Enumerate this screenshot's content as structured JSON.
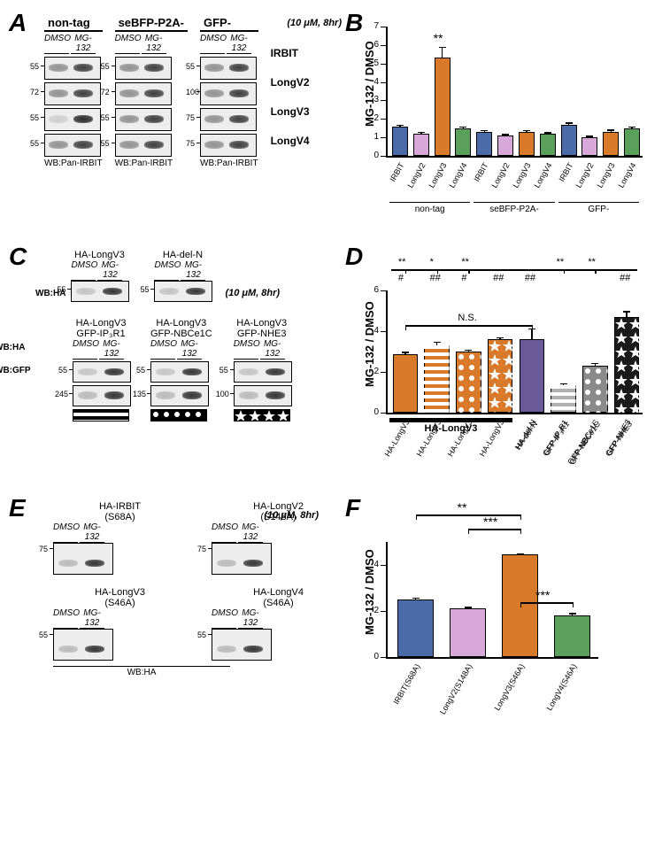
{
  "colors": {
    "irbit": "#4a6aa8",
    "longv2": "#d8a8d8",
    "longv3": "#d97a2a",
    "longv4": "#5aa05a",
    "deln": "#6a5a9a",
    "ip3r1": "#b0b0b0",
    "nbce1c": "#8a8a8a",
    "nhe3": "#1a1a1a",
    "axis": "#000000",
    "background": "#ffffff"
  },
  "typography": {
    "panel_label_pt": 28,
    "axis_label_pt": 13,
    "tick_label_pt": 10,
    "category_pt": 9,
    "group_title_pt": 13
  },
  "panelA": {
    "condition_note": "(10 μM, 8hr)",
    "wb_label": "WB:Pan-IRBIT",
    "groups": [
      {
        "title": "non-tag",
        "lanes": [
          "DMSO",
          "MG-132"
        ],
        "mw": [
          55,
          72,
          55,
          55
        ]
      },
      {
        "title": "seBFP-P2A-",
        "lanes": [
          "DMSO",
          "MG-132"
        ],
        "mw": [
          55,
          72,
          55,
          55
        ]
      },
      {
        "title": "GFP-",
        "lanes": [
          "DMSO",
          "MG-132"
        ],
        "mw": [
          55,
          100,
          75,
          75
        ]
      }
    ],
    "row_labels": [
      "IRBIT",
      "LongV2",
      "LongV3",
      "LongV4"
    ]
  },
  "panelB": {
    "ylabel": "MG-132 / DMSO",
    "ytick_step": 1,
    "ylim": [
      0,
      7
    ],
    "groups": [
      "non-tag",
      "seBFP-P2A-",
      "GFP-"
    ],
    "categories": [
      "IRBIT",
      "LongV2",
      "LongV3",
      "LongV4"
    ],
    "values": {
      "non-tag": [
        1.6,
        1.2,
        5.3,
        1.5
      ],
      "seBFP-P2A-": [
        1.3,
        1.1,
        1.3,
        1.2
      ],
      "GFP-": [
        1.7,
        1.0,
        1.3,
        1.5
      ]
    },
    "errors": {
      "non-tag": [
        0.1,
        0.1,
        0.6,
        0.1
      ],
      "seBFP-P2A-": [
        0.1,
        0.08,
        0.1,
        0.08
      ],
      "GFP-": [
        0.12,
        0.1,
        0.12,
        0.1
      ]
    },
    "colors_by_cat": [
      "irbit",
      "longv2",
      "longv3",
      "longv4"
    ],
    "sig": {
      "label": "**",
      "target": "non-tag.LongV3"
    }
  },
  "panelC": {
    "condition_note": "(10 μM, 8hr)",
    "top": [
      {
        "title": "HA-LongV3",
        "lanes": [
          "DMSO",
          "MG-132"
        ],
        "mw": 55,
        "wb": "WB:HA"
      },
      {
        "title": "HA-del-N",
        "lanes": [
          "DMSO",
          "MG-132"
        ],
        "mw": 55
      }
    ],
    "bottom": [
      {
        "title_top": "HA-LongV3",
        "title_bot": "GFP-IP₃R1",
        "lanes": [
          "DMSO",
          "MG-132"
        ],
        "mw_ha": 55,
        "mw_gfp": 245,
        "pattern": "stripes"
      },
      {
        "title_top": "HA-LongV3",
        "title_bot": "GFP-NBCe1C",
        "lanes": [
          "DMSO",
          "MG-132"
        ],
        "mw_ha": 55,
        "mw_gfp": 135,
        "pattern": "dots"
      },
      {
        "title_top": "HA-LongV3",
        "title_bot": "GFP-NHE3",
        "lanes": [
          "DMSO",
          "MG-132"
        ],
        "mw_ha": 55,
        "mw_gfp": 100,
        "pattern": "stars"
      }
    ],
    "wb_rows": [
      "WB:HA",
      "WB:GFP"
    ]
  },
  "panelD": {
    "ylabel": "MG-132 / DMSO",
    "ylim": [
      0,
      6
    ],
    "ytick_step": 2,
    "bars": [
      {
        "label": "HA-LongV3",
        "pattern": "solid",
        "color": "longv3",
        "value": 2.85,
        "err": 0.15
      },
      {
        "label": "HA-LongV3",
        "pattern": "hstripes",
        "color": "longv3",
        "value": 3.3,
        "err": 0.2
      },
      {
        "label": "HA-LongV3",
        "pattern": "dots",
        "color": "longv3",
        "value": 3.0,
        "err": 0.1
      },
      {
        "label": "HA-LongV3",
        "pattern": "stars",
        "color": "longv3",
        "value": 3.6,
        "err": 0.1
      },
      {
        "label": "HA-del-N",
        "pattern": "solid",
        "color": "deln",
        "value": 3.6,
        "err": 0.55
      },
      {
        "label": "GFP-IP₃R1",
        "pattern": "hstripes",
        "color": "ip3r1",
        "value": 1.35,
        "err": 0.1
      },
      {
        "label": "GFP-NBCe1C",
        "pattern": "dots",
        "color": "nbce1c",
        "value": 2.3,
        "err": 0.15
      },
      {
        "label": "GFP-NHE3",
        "pattern": "stars",
        "color": "nhe3",
        "value": 4.7,
        "err": 0.3
      }
    ],
    "group_underline": {
      "label": "HA-LongV3",
      "span": [
        0,
        3
      ]
    },
    "top_sigs": [
      "**",
      "*",
      "**",
      "",
      "",
      "**",
      "**",
      ""
    ],
    "hash_sigs": [
      "#",
      "##",
      "#",
      "##",
      "##",
      "",
      "",
      "##"
    ],
    "ns_label": "N.S.",
    "ns_span": [
      0,
      4
    ]
  },
  "panelE": {
    "condition_note": "(10 μM, 8hr)",
    "wb_label": "WB:HA",
    "blots": [
      {
        "title": "HA-IRBIT\n(S68A)",
        "lanes": [
          "DMSO",
          "MG-132"
        ],
        "mw": 75
      },
      {
        "title": "HA-LongV2\n(S148A)",
        "lanes": [
          "DMSO",
          "MG-132"
        ],
        "mw": 75
      },
      {
        "title": "HA-LongV3\n(S46A)",
        "lanes": [
          "DMSO",
          "MG-132"
        ],
        "mw": 55
      },
      {
        "title": "HA-LongV4\n(S46A)",
        "lanes": [
          "DMSO",
          "MG-132"
        ],
        "mw": 55
      }
    ]
  },
  "panelF": {
    "ylabel": "MG-132 / DMSO",
    "ylim": [
      0,
      5
    ],
    "ytick_step": 2,
    "bars": [
      {
        "label": "IRBIT(S68A)",
        "color": "irbit",
        "value": 2.5,
        "err": 0.08
      },
      {
        "label": "LongV2(S148A)",
        "color": "longv2",
        "value": 2.1,
        "err": 0.08
      },
      {
        "label": "LongV3(S46A)",
        "color": "longv3",
        "value": 4.45,
        "err": 0.05
      },
      {
        "label": "LongV4(S46A)",
        "color": "longv4",
        "value": 1.8,
        "err": 0.12
      }
    ],
    "sigs": [
      {
        "from": 0,
        "to": 2,
        "label": "**",
        "level": 2
      },
      {
        "from": 1,
        "to": 2,
        "label": "***",
        "level": 1
      },
      {
        "from": 2,
        "to": 3,
        "label": "***",
        "level": 0
      }
    ]
  }
}
